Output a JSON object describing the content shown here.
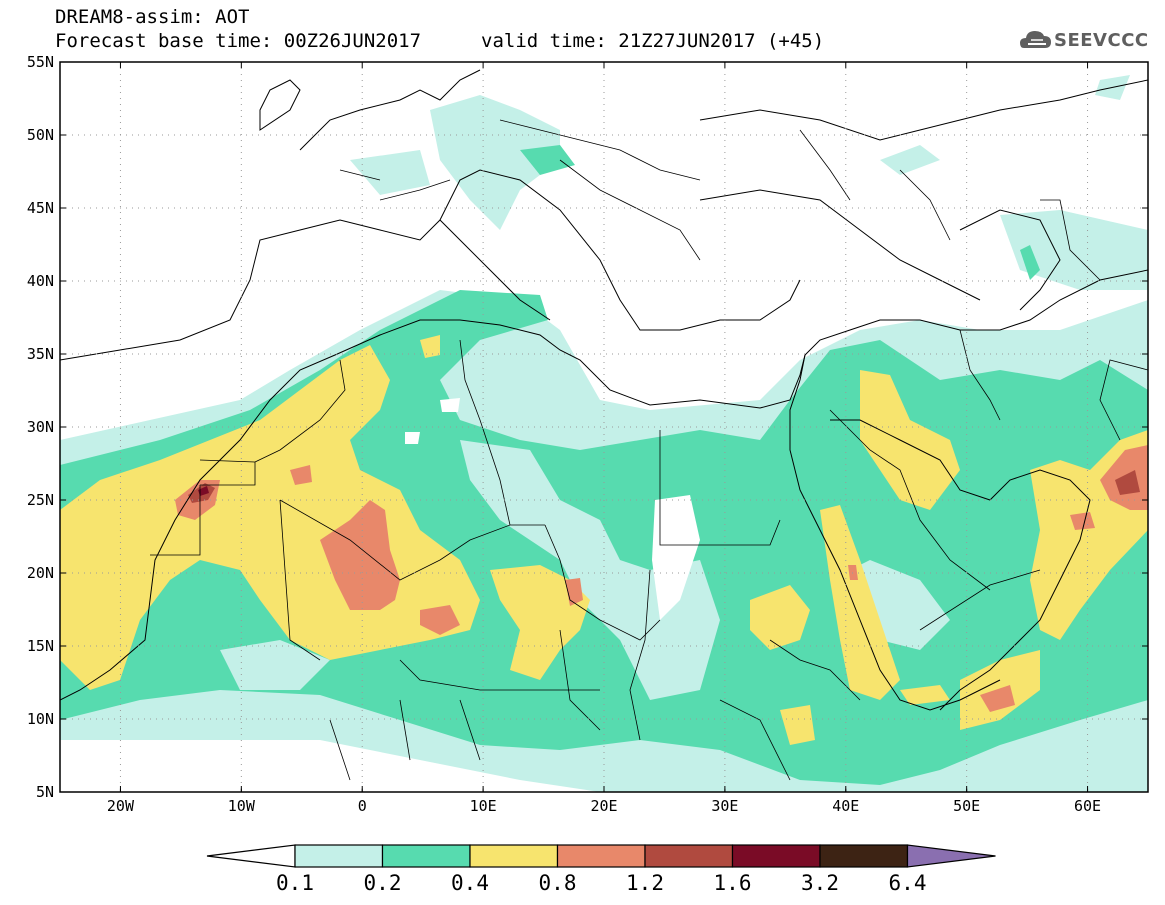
{
  "header": {
    "title": "DREAM8-assim: AOT",
    "base_time": "Forecast base time: 00Z26JUN2017",
    "valid_time": "valid time: 21Z27JUN2017 (+45)"
  },
  "logo": {
    "text": "SEEVCCC",
    "icon": "cloud-icon"
  },
  "map": {
    "lat_labels": [
      "55N",
      "50N",
      "45N",
      "40N",
      "35N",
      "30N",
      "25N",
      "20N",
      "15N",
      "10N",
      "5N"
    ],
    "lon_labels": [
      "20W",
      "10W",
      "0",
      "10E",
      "20E",
      "30E",
      "40E",
      "50E",
      "60E"
    ],
    "extent": {
      "lon_min": -25,
      "lon_max": 65,
      "lat_min": 5,
      "lat_max": 55
    },
    "grid": "dotted"
  },
  "colorbar": {
    "labels": [
      "0.1",
      "0.2",
      "0.4",
      "0.8",
      "1.2",
      "1.6",
      "3.2",
      "6.4"
    ],
    "colors": [
      "#ffffff",
      "#c4f0e8",
      "#57dbaf",
      "#f7e46e",
      "#e8886a",
      "#b04a3f",
      "#7a0b26",
      "#3d2314",
      "#8a6fb0"
    ]
  }
}
